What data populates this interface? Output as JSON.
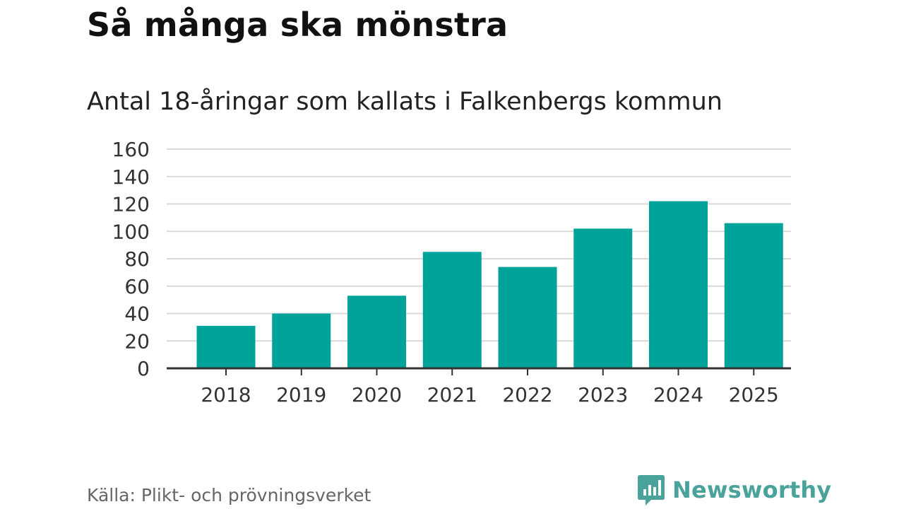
{
  "chart_data": {
    "type": "bar",
    "title": "Så många ska mönstra",
    "subtitle": "Antal 18-åringar som kallats i Falkenbergs kommun",
    "categories": [
      "2018",
      "2019",
      "2020",
      "2021",
      "2022",
      "2023",
      "2024",
      "2025"
    ],
    "values": [
      31,
      40,
      53,
      85,
      74,
      102,
      122,
      106
    ],
    "ylim": [
      0,
      160
    ],
    "yticks": [
      0,
      20,
      40,
      60,
      80,
      100,
      120,
      140,
      160
    ],
    "grid": true,
    "bar_color": "#00a39a"
  },
  "source": "Källa: Plikt- och prövningsverket",
  "brand": {
    "name": "Newsworthy",
    "icon": "newsworthy-logo-icon",
    "color": "#4aa39a"
  }
}
